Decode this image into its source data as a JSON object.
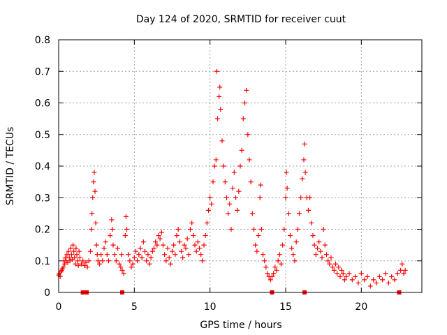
{
  "chart_data": {
    "type": "scatter",
    "title": "Day 124 of 2020, SRMTID for receiver cuut",
    "xlabel": "GPS time / hours",
    "ylabel": "SRMTID / TECUs",
    "xlim": [
      0,
      24
    ],
    "ylim": [
      0,
      0.8
    ],
    "xticks": [
      0,
      5,
      10,
      15,
      20
    ],
    "yticks": [
      0,
      0.1,
      0.2,
      0.3,
      0.4,
      0.5,
      0.6,
      0.7,
      0.8
    ],
    "xtick_labels": [
      "0",
      "5",
      "10",
      "15",
      "20"
    ],
    "ytick_labels": [
      "0",
      "0.1",
      "0.2",
      "0.3",
      "0.4",
      "0.5",
      "0.6",
      "0.7",
      "0.8"
    ],
    "grid": true,
    "marker": "plus",
    "zero_markers": {
      "marker": "square",
      "x": [
        1.6,
        1.85,
        4.2,
        14.1,
        16.25,
        22.5
      ]
    },
    "series": [
      {
        "name": "SRMTID",
        "color": "#ff0000",
        "points": [
          [
            0.0,
            0.055
          ],
          [
            0.05,
            0.06
          ],
          [
            0.1,
            0.05
          ],
          [
            0.15,
            0.065
          ],
          [
            0.2,
            0.07
          ],
          [
            0.25,
            0.075
          ],
          [
            0.3,
            0.08
          ],
          [
            0.35,
            0.1
          ],
          [
            0.4,
            0.09
          ],
          [
            0.45,
            0.11
          ],
          [
            0.5,
            0.1
          ],
          [
            0.55,
            0.12
          ],
          [
            0.6,
            0.095
          ],
          [
            0.65,
            0.13
          ],
          [
            0.7,
            0.11
          ],
          [
            0.75,
            0.1
          ],
          [
            0.8,
            0.14
          ],
          [
            0.85,
            0.12
          ],
          [
            0.9,
            0.105
          ],
          [
            0.95,
            0.15
          ],
          [
            1.0,
            0.13
          ],
          [
            1.05,
            0.11
          ],
          [
            1.1,
            0.09
          ],
          [
            1.15,
            0.14
          ],
          [
            1.2,
            0.12
          ],
          [
            1.25,
            0.1
          ],
          [
            1.3,
            0.085
          ],
          [
            1.35,
            0.13
          ],
          [
            1.4,
            0.11
          ],
          [
            1.5,
            0.09
          ],
          [
            1.6,
            0.1
          ],
          [
            1.7,
            0.085
          ],
          [
            1.8,
            0.095
          ],
          [
            1.9,
            0.08
          ],
          [
            2.0,
            0.1
          ],
          [
            2.1,
            0.13
          ],
          [
            2.15,
            0.2
          ],
          [
            2.2,
            0.25
          ],
          [
            2.25,
            0.3
          ],
          [
            2.3,
            0.35
          ],
          [
            2.35,
            0.38
          ],
          [
            2.4,
            0.32
          ],
          [
            2.45,
            0.22
          ],
          [
            2.5,
            0.15
          ],
          [
            2.55,
            0.12
          ],
          [
            2.6,
            0.1
          ],
          [
            2.7,
            0.09
          ],
          [
            2.8,
            0.12
          ],
          [
            2.9,
            0.1
          ],
          [
            3.0,
            0.14
          ],
          [
            3.1,
            0.16
          ],
          [
            3.2,
            0.12
          ],
          [
            3.3,
            0.1
          ],
          [
            3.4,
            0.18
          ],
          [
            3.5,
            0.23
          ],
          [
            3.55,
            0.2
          ],
          [
            3.6,
            0.15
          ],
          [
            3.7,
            0.12
          ],
          [
            3.8,
            0.1
          ],
          [
            3.9,
            0.14
          ],
          [
            4.0,
            0.09
          ],
          [
            4.1,
            0.08
          ],
          [
            4.15,
            0.12
          ],
          [
            4.2,
            0.07
          ],
          [
            4.3,
            0.06
          ],
          [
            4.4,
            0.18
          ],
          [
            4.45,
            0.24
          ],
          [
            4.5,
            0.2
          ],
          [
            4.6,
            0.12
          ],
          [
            4.7,
            0.1
          ],
          [
            4.8,
            0.08
          ],
          [
            4.9,
            0.09
          ],
          [
            5.0,
            0.11
          ],
          [
            5.1,
            0.13
          ],
          [
            5.2,
            0.1
          ],
          [
            5.3,
            0.12
          ],
          [
            5.4,
            0.14
          ],
          [
            5.5,
            0.11
          ],
          [
            5.6,
            0.16
          ],
          [
            5.7,
            0.13
          ],
          [
            5.8,
            0.1
          ],
          [
            5.9,
            0.12
          ],
          [
            6.0,
            0.09
          ],
          [
            6.1,
            0.11
          ],
          [
            6.2,
            0.13
          ],
          [
            6.3,
            0.14
          ],
          [
            6.4,
            0.16
          ],
          [
            6.5,
            0.15
          ],
          [
            6.6,
            0.18
          ],
          [
            6.7,
            0.17
          ],
          [
            6.8,
            0.19
          ],
          [
            6.9,
            0.15
          ],
          [
            7.0,
            0.12
          ],
          [
            7.1,
            0.1
          ],
          [
            7.2,
            0.14
          ],
          [
            7.3,
            0.11
          ],
          [
            7.4,
            0.09
          ],
          [
            7.5,
            0.13
          ],
          [
            7.6,
            0.15
          ],
          [
            7.7,
            0.12
          ],
          [
            7.8,
            0.18
          ],
          [
            7.9,
            0.2
          ],
          [
            8.0,
            0.16
          ],
          [
            8.1,
            0.13
          ],
          [
            8.2,
            0.11
          ],
          [
            8.3,
            0.15
          ],
          [
            8.4,
            0.14
          ],
          [
            8.5,
            0.17
          ],
          [
            8.6,
            0.12
          ],
          [
            8.7,
            0.2
          ],
          [
            8.8,
            0.22
          ],
          [
            8.9,
            0.18
          ],
          [
            9.0,
            0.15
          ],
          [
            9.1,
            0.13
          ],
          [
            9.2,
            0.16
          ],
          [
            9.3,
            0.14
          ],
          [
            9.4,
            0.12
          ],
          [
            9.5,
            0.1
          ],
          [
            9.6,
            0.15
          ],
          [
            9.7,
            0.18
          ],
          [
            9.8,
            0.22
          ],
          [
            9.9,
            0.26
          ],
          [
            10.0,
            0.3
          ],
          [
            10.1,
            0.28
          ],
          [
            10.2,
            0.35
          ],
          [
            10.3,
            0.4
          ],
          [
            10.4,
            0.42
          ],
          [
            10.45,
            0.7
          ],
          [
            10.5,
            0.55
          ],
          [
            10.6,
            0.62
          ],
          [
            10.65,
            0.65
          ],
          [
            10.7,
            0.58
          ],
          [
            10.8,
            0.48
          ],
          [
            10.9,
            0.4
          ],
          [
            11.0,
            0.35
          ],
          [
            11.1,
            0.3
          ],
          [
            11.2,
            0.25
          ],
          [
            11.3,
            0.28
          ],
          [
            11.4,
            0.2
          ],
          [
            11.5,
            0.33
          ],
          [
            11.6,
            0.38
          ],
          [
            11.7,
            0.3
          ],
          [
            11.8,
            0.26
          ],
          [
            11.9,
            0.32
          ],
          [
            12.0,
            0.4
          ],
          [
            12.1,
            0.45
          ],
          [
            12.2,
            0.55
          ],
          [
            12.3,
            0.6
          ],
          [
            12.4,
            0.64
          ],
          [
            12.5,
            0.5
          ],
          [
            12.6,
            0.42
          ],
          [
            12.7,
            0.35
          ],
          [
            12.8,
            0.25
          ],
          [
            12.9,
            0.2
          ],
          [
            13.0,
            0.15
          ],
          [
            13.1,
            0.13
          ],
          [
            13.2,
            0.18
          ],
          [
            13.3,
            0.3
          ],
          [
            13.35,
            0.34
          ],
          [
            13.4,
            0.2
          ],
          [
            13.5,
            0.12
          ],
          [
            13.6,
            0.1
          ],
          [
            13.7,
            0.08
          ],
          [
            13.8,
            0.06
          ],
          [
            13.9,
            0.05
          ],
          [
            14.0,
            0.04
          ],
          [
            14.1,
            0.05
          ],
          [
            14.2,
            0.06
          ],
          [
            14.3,
            0.08
          ],
          [
            14.4,
            0.07
          ],
          [
            14.5,
            0.1
          ],
          [
            14.6,
            0.12
          ],
          [
            14.7,
            0.09
          ],
          [
            14.8,
            0.15
          ],
          [
            14.9,
            0.2
          ],
          [
            15.0,
            0.3
          ],
          [
            15.05,
            0.38
          ],
          [
            15.1,
            0.33
          ],
          [
            15.2,
            0.25
          ],
          [
            15.3,
            0.18
          ],
          [
            15.4,
            0.14
          ],
          [
            15.5,
            0.12
          ],
          [
            15.6,
            0.1
          ],
          [
            15.7,
            0.16
          ],
          [
            15.8,
            0.2
          ],
          [
            15.9,
            0.25
          ],
          [
            16.0,
            0.3
          ],
          [
            16.1,
            0.36
          ],
          [
            16.2,
            0.42
          ],
          [
            16.25,
            0.47
          ],
          [
            16.3,
            0.38
          ],
          [
            16.4,
            0.3
          ],
          [
            16.5,
            0.26
          ],
          [
            16.6,
            0.3
          ],
          [
            16.7,
            0.22
          ],
          [
            16.8,
            0.18
          ],
          [
            16.9,
            0.15
          ],
          [
            17.0,
            0.12
          ],
          [
            17.1,
            0.14
          ],
          [
            17.2,
            0.16
          ],
          [
            17.3,
            0.13
          ],
          [
            17.4,
            0.11
          ],
          [
            17.5,
            0.2
          ],
          [
            17.6,
            0.15
          ],
          [
            17.7,
            0.12
          ],
          [
            17.8,
            0.1
          ],
          [
            17.9,
            0.09
          ],
          [
            18.0,
            0.11
          ],
          [
            18.1,
            0.08
          ],
          [
            18.2,
            0.07
          ],
          [
            18.3,
            0.09
          ],
          [
            18.4,
            0.06
          ],
          [
            18.5,
            0.08
          ],
          [
            18.6,
            0.05
          ],
          [
            18.7,
            0.07
          ],
          [
            18.8,
            0.06
          ],
          [
            18.9,
            0.04
          ],
          [
            19.0,
            0.05
          ],
          [
            19.2,
            0.06
          ],
          [
            19.4,
            0.04
          ],
          [
            19.6,
            0.05
          ],
          [
            19.8,
            0.03
          ],
          [
            20.0,
            0.06
          ],
          [
            20.2,
            0.04
          ],
          [
            20.4,
            0.05
          ],
          [
            20.6,
            0.02
          ],
          [
            20.8,
            0.04
          ],
          [
            21.0,
            0.03
          ],
          [
            21.2,
            0.05
          ],
          [
            21.4,
            0.04
          ],
          [
            21.6,
            0.06
          ],
          [
            21.8,
            0.03
          ],
          [
            22.0,
            0.05
          ],
          [
            22.2,
            0.04
          ],
          [
            22.4,
            0.06
          ],
          [
            22.6,
            0.07
          ],
          [
            22.7,
            0.09
          ],
          [
            22.8,
            0.06
          ],
          [
            22.9,
            0.07
          ]
        ]
      }
    ]
  }
}
